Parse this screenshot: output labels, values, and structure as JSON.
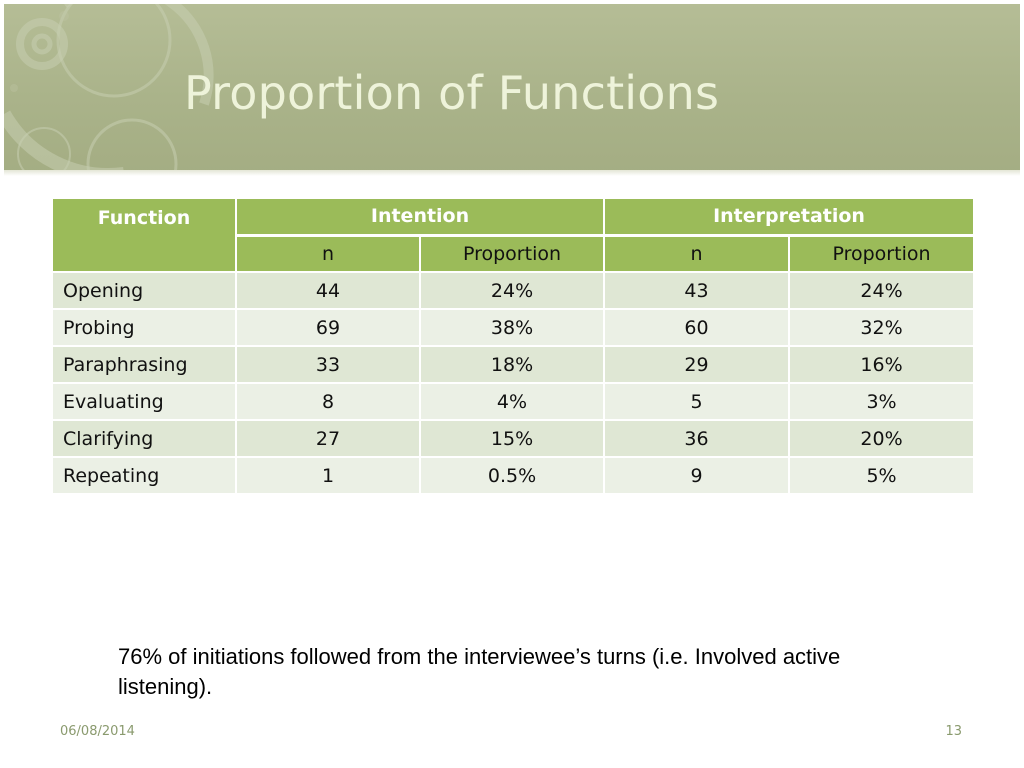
{
  "slide": {
    "title": "Proportion of Functions",
    "note": "76% of initiations followed from the interviewee’s turns (i.e. Involved active listening).",
    "footer_date": "06/08/2014",
    "page_number": "13"
  },
  "table": {
    "header": {
      "function": "Function",
      "group1": "Intention",
      "group2": "Interpretation"
    },
    "subheader": [
      "n",
      "Proportion",
      "n",
      "Proportion"
    ],
    "rows": [
      {
        "label": "Opening",
        "int_n": "44",
        "int_p": "24%",
        "interp_n": "43",
        "interp_p": "24%"
      },
      {
        "label": "Probing",
        "int_n": "69",
        "int_p": "38%",
        "interp_n": "60",
        "interp_p": "32%"
      },
      {
        "label": "Paraphrasing",
        "int_n": "33",
        "int_p": "18%",
        "interp_n": "29",
        "interp_p": "16%"
      },
      {
        "label": "Evaluating",
        "int_n": "8",
        "int_p": "4%",
        "interp_n": "5",
        "interp_p": "3%"
      },
      {
        "label": "Clarifying",
        "int_n": "27",
        "int_p": "15%",
        "interp_n": "36",
        "interp_p": "20%"
      },
      {
        "label": "Repeating",
        "int_n": "1",
        "int_p": "0.5%",
        "interp_n": "9",
        "interp_p": "5%"
      }
    ]
  },
  "colors": {
    "banner": "#aab38a",
    "header_green": "#9bbb59",
    "row_dark": "#dfe7d4",
    "row_light": "#ebf0e5",
    "title_text": "#eef3da"
  }
}
